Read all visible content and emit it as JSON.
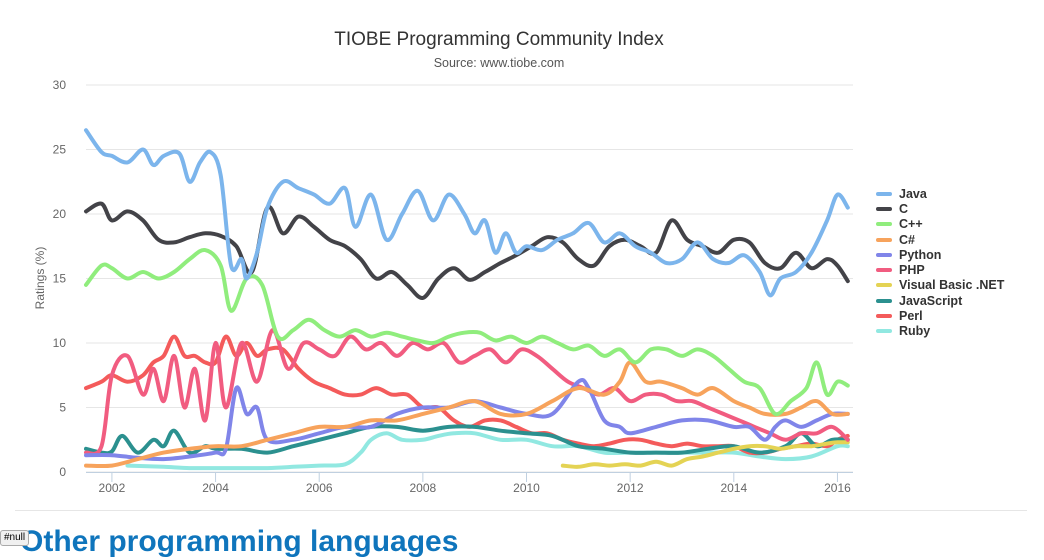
{
  "chart_data": {
    "type": "line",
    "title": "TIOBE Programming Community Index",
    "subtitle": "Source: www.tiobe.com",
    "xlabel": "",
    "ylabel": "Ratings (%)",
    "xlim": [
      2001.5,
      2016.3
    ],
    "ylim": [
      0,
      30
    ],
    "yticks": [
      0,
      5,
      10,
      15,
      20,
      25,
      30
    ],
    "xticks": [
      2002,
      2004,
      2006,
      2008,
      2010,
      2012,
      2014,
      2016
    ],
    "grid": "horizontal",
    "legend_position": "right",
    "series": [
      {
        "name": "Java",
        "color": "#7cb5ec",
        "x": [
          2001.5,
          2001.8,
          2002.0,
          2002.3,
          2002.6,
          2002.8,
          2003.0,
          2003.3,
          2003.5,
          2003.7,
          2003.9,
          2004.1,
          2004.3,
          2004.5,
          2004.6,
          2004.8,
          2005.0,
          2005.3,
          2005.6,
          2005.9,
          2006.2,
          2006.5,
          2006.7,
          2007.0,
          2007.3,
          2007.6,
          2007.9,
          2008.2,
          2008.5,
          2008.8,
          2009.0,
          2009.2,
          2009.4,
          2009.6,
          2009.8,
          2010.0,
          2010.3,
          2010.6,
          2010.9,
          2011.2,
          2011.5,
          2011.8,
          2012.1,
          2012.4,
          2012.7,
          2013.0,
          2013.3,
          2013.6,
          2013.9,
          2014.2,
          2014.5,
          2014.7,
          2014.9,
          2015.2,
          2015.5,
          2015.8,
          2016.0,
          2016.2
        ],
        "values": [
          26.5,
          24.8,
          24.5,
          24.0,
          25.0,
          23.8,
          24.5,
          24.7,
          22.5,
          24.0,
          24.8,
          23.0,
          16.0,
          16.5,
          15.0,
          17.0,
          20.5,
          22.5,
          22.0,
          21.5,
          20.8,
          22.0,
          19.0,
          21.5,
          18.0,
          20.0,
          21.8,
          19.5,
          21.5,
          20.0,
          18.5,
          19.5,
          17.0,
          18.5,
          17.0,
          17.5,
          17.2,
          18.0,
          18.5,
          19.3,
          17.8,
          18.5,
          17.5,
          17.0,
          16.2,
          16.5,
          17.8,
          16.5,
          16.2,
          16.8,
          15.5,
          13.7,
          15.0,
          15.5,
          17.0,
          19.5,
          21.5,
          20.5
        ]
      },
      {
        "name": "C",
        "color": "#434348",
        "x": [
          2001.5,
          2001.8,
          2002.0,
          2002.3,
          2002.6,
          2002.9,
          2003.2,
          2003.5,
          2003.8,
          2004.1,
          2004.4,
          2004.7,
          2005.0,
          2005.3,
          2005.6,
          2005.9,
          2006.2,
          2006.5,
          2006.8,
          2007.1,
          2007.4,
          2007.7,
          2008.0,
          2008.3,
          2008.6,
          2008.9,
          2009.2,
          2009.5,
          2009.8,
          2010.1,
          2010.4,
          2010.7,
          2011.0,
          2011.3,
          2011.6,
          2011.9,
          2012.2,
          2012.5,
          2012.8,
          2013.1,
          2013.4,
          2013.7,
          2014.0,
          2014.3,
          2014.6,
          2014.9,
          2015.2,
          2015.5,
          2015.8,
          2016.0,
          2016.2
        ],
        "values": [
          20.2,
          20.8,
          19.5,
          20.2,
          19.5,
          18.0,
          17.8,
          18.2,
          18.5,
          18.3,
          17.5,
          15.5,
          20.5,
          18.5,
          19.8,
          19.0,
          18.0,
          17.5,
          16.5,
          15.0,
          15.5,
          14.5,
          13.5,
          15.0,
          15.8,
          14.9,
          15.5,
          16.2,
          16.8,
          17.5,
          18.2,
          17.8,
          16.5,
          16.0,
          17.5,
          18.0,
          17.5,
          17.0,
          19.5,
          18.0,
          17.5,
          17.0,
          18.0,
          17.8,
          16.2,
          15.8,
          17.0,
          15.8,
          16.5,
          16.0,
          14.8
        ]
      },
      {
        "name": "C++",
        "color": "#90ed7d",
        "x": [
          2001.5,
          2001.8,
          2002.0,
          2002.3,
          2002.6,
          2002.9,
          2003.2,
          2003.5,
          2003.8,
          2004.1,
          2004.3,
          2004.6,
          2004.9,
          2005.2,
          2005.5,
          2005.8,
          2006.1,
          2006.4,
          2006.7,
          2007.0,
          2007.3,
          2007.6,
          2007.9,
          2008.2,
          2008.5,
          2008.8,
          2009.1,
          2009.4,
          2009.7,
          2010.0,
          2010.3,
          2010.6,
          2010.9,
          2011.2,
          2011.5,
          2011.8,
          2012.1,
          2012.4,
          2012.7,
          2013.0,
          2013.3,
          2013.6,
          2013.9,
          2014.2,
          2014.5,
          2014.8,
          2015.1,
          2015.4,
          2015.6,
          2015.8,
          2016.0,
          2016.2
        ],
        "values": [
          14.5,
          16.0,
          15.8,
          15.0,
          15.5,
          15.0,
          15.5,
          16.5,
          17.2,
          16.0,
          12.5,
          15.0,
          14.5,
          10.5,
          11.0,
          11.8,
          11.0,
          10.5,
          11.0,
          10.5,
          10.8,
          10.5,
          10.2,
          10.0,
          10.5,
          10.8,
          10.8,
          10.2,
          10.5,
          10.0,
          10.5,
          10.0,
          9.5,
          9.8,
          9.0,
          9.5,
          8.5,
          9.5,
          9.5,
          9.0,
          9.5,
          9.0,
          8.0,
          7.0,
          6.5,
          4.5,
          5.5,
          6.5,
          8.5,
          6.0,
          7.0,
          6.7
        ]
      },
      {
        "name": "C#",
        "color": "#f7a35c",
        "x": [
          2001.5,
          2002.0,
          2002.5,
          2003.0,
          2003.5,
          2004.0,
          2004.5,
          2005.0,
          2005.5,
          2006.0,
          2006.5,
          2007.0,
          2007.5,
          2008.0,
          2008.5,
          2009.0,
          2009.5,
          2010.0,
          2010.5,
          2011.0,
          2011.5,
          2011.8,
          2012.0,
          2012.3,
          2012.6,
          2013.0,
          2013.3,
          2013.6,
          2014.0,
          2014.3,
          2014.6,
          2015.0,
          2015.3,
          2015.6,
          2015.9,
          2016.2
        ],
        "values": [
          0.5,
          0.5,
          1.0,
          1.5,
          1.8,
          2.0,
          2.0,
          2.5,
          3.0,
          3.5,
          3.5,
          4.0,
          4.0,
          4.5,
          5.0,
          5.5,
          4.5,
          4.5,
          5.5,
          6.5,
          6.0,
          7.0,
          8.5,
          7.0,
          7.0,
          6.5,
          6.0,
          6.5,
          5.5,
          5.0,
          4.5,
          4.5,
          5.0,
          5.5,
          4.5,
          4.5
        ]
      },
      {
        "name": "Python",
        "color": "#8085e9",
        "x": [
          2001.5,
          2002.0,
          2002.5,
          2003.0,
          2003.5,
          2004.0,
          2004.2,
          2004.4,
          2004.6,
          2004.8,
          2005.0,
          2005.5,
          2006.0,
          2006.5,
          2007.0,
          2007.5,
          2008.0,
          2008.5,
          2009.0,
          2009.5,
          2010.0,
          2010.5,
          2011.0,
          2011.2,
          2011.5,
          2011.8,
          2012.0,
          2012.5,
          2013.0,
          2013.5,
          2014.0,
          2014.3,
          2014.6,
          2014.8,
          2015.0,
          2015.3,
          2015.6,
          2015.9,
          2016.2
        ],
        "values": [
          1.3,
          1.3,
          1.1,
          1.0,
          1.2,
          1.5,
          1.8,
          6.5,
          4.5,
          5.0,
          2.5,
          2.5,
          3.0,
          3.5,
          3.5,
          4.5,
          5.0,
          5.0,
          5.5,
          5.0,
          4.5,
          4.5,
          7.0,
          6.5,
          4.0,
          3.5,
          3.0,
          3.5,
          4.0,
          4.0,
          3.5,
          3.5,
          2.5,
          3.5,
          4.0,
          3.5,
          4.0,
          4.5,
          4.5
        ]
      },
      {
        "name": "PHP",
        "color": "#f15c80",
        "x": [
          2001.5,
          2001.8,
          2002.0,
          2002.3,
          2002.6,
          2002.8,
          2003.0,
          2003.2,
          2003.4,
          2003.6,
          2003.8,
          2004.0,
          2004.2,
          2004.5,
          2004.8,
          2005.1,
          2005.4,
          2005.7,
          2006.0,
          2006.3,
          2006.6,
          2006.9,
          2007.2,
          2007.5,
          2007.8,
          2008.1,
          2008.4,
          2008.7,
          2009.0,
          2009.3,
          2009.6,
          2009.9,
          2010.2,
          2010.5,
          2010.8,
          2011.1,
          2011.4,
          2011.7,
          2012.0,
          2012.3,
          2012.6,
          2012.9,
          2013.2,
          2013.5,
          2013.8,
          2014.1,
          2014.4,
          2014.7,
          2015.0,
          2015.3,
          2015.6,
          2015.9,
          2016.2
        ],
        "values": [
          1.5,
          2.0,
          7.5,
          9.0,
          6.0,
          8.0,
          5.5,
          9.0,
          5.0,
          8.0,
          4.0,
          10.0,
          5.0,
          10.0,
          7.0,
          11.0,
          8.0,
          10.0,
          9.5,
          9.0,
          10.5,
          9.5,
          10.0,
          9.0,
          10.0,
          9.5,
          10.0,
          8.5,
          9.0,
          9.5,
          8.5,
          9.5,
          9.0,
          8.0,
          7.0,
          6.5,
          6.0,
          6.5,
          5.5,
          6.0,
          6.0,
          5.5,
          5.5,
          5.0,
          4.5,
          4.0,
          3.5,
          3.0,
          2.5,
          3.0,
          3.0,
          3.5,
          2.5
        ]
      },
      {
        "name": "Visual Basic .NET",
        "color": "#e4d354",
        "x": [
          2010.7,
          2011.0,
          2011.3,
          2011.6,
          2011.9,
          2012.2,
          2012.5,
          2012.8,
          2013.1,
          2013.4,
          2013.7,
          2014.0,
          2014.3,
          2014.6,
          2014.9,
          2015.2,
          2015.5,
          2015.8,
          2016.0,
          2016.2
        ],
        "values": [
          0.5,
          0.4,
          0.6,
          0.5,
          0.6,
          0.5,
          0.8,
          0.5,
          1.0,
          1.2,
          1.5,
          1.8,
          2.0,
          2.0,
          1.8,
          2.0,
          2.0,
          2.2,
          2.3,
          2.3
        ]
      },
      {
        "name": "JavaScript",
        "color": "#2b908f",
        "x": [
          2001.5,
          2001.8,
          2002.0,
          2002.2,
          2002.5,
          2002.8,
          2003.0,
          2003.2,
          2003.5,
          2003.8,
          2004.0,
          2004.5,
          2005.0,
          2005.5,
          2006.0,
          2006.5,
          2007.0,
          2007.5,
          2008.0,
          2008.5,
          2009.0,
          2009.5,
          2010.0,
          2010.5,
          2011.0,
          2011.5,
          2012.0,
          2012.5,
          2013.0,
          2013.5,
          2014.0,
          2014.5,
          2015.0,
          2015.3,
          2015.6,
          2015.9,
          2016.2
        ],
        "values": [
          1.8,
          1.5,
          1.6,
          2.8,
          1.5,
          2.5,
          2.0,
          3.2,
          1.5,
          2.0,
          1.8,
          1.8,
          1.5,
          2.0,
          2.5,
          3.0,
          3.5,
          3.5,
          3.2,
          3.5,
          3.5,
          3.2,
          3.0,
          2.8,
          2.0,
          1.8,
          1.5,
          1.5,
          1.5,
          1.8,
          2.0,
          1.5,
          2.0,
          3.0,
          2.0,
          2.5,
          2.5
        ]
      },
      {
        "name": "Perl",
        "color": "#f45b5b",
        "x": [
          2001.5,
          2001.8,
          2002.0,
          2002.3,
          2002.6,
          2002.8,
          2003.0,
          2003.2,
          2003.4,
          2003.6,
          2003.8,
          2004.0,
          2004.2,
          2004.4,
          2004.6,
          2004.8,
          2005.0,
          2005.3,
          2005.6,
          2005.9,
          2006.2,
          2006.5,
          2006.8,
          2007.1,
          2007.4,
          2007.7,
          2008.0,
          2008.3,
          2008.6,
          2008.9,
          2009.2,
          2009.5,
          2009.8,
          2010.1,
          2010.4,
          2010.7,
          2011.0,
          2011.3,
          2011.6,
          2011.9,
          2012.2,
          2012.5,
          2012.8,
          2013.1,
          2013.4,
          2013.7,
          2014.0,
          2014.3,
          2014.6,
          2014.9,
          2015.2,
          2015.5,
          2015.8,
          2016.0,
          2016.2
        ],
        "values": [
          6.5,
          7.0,
          7.5,
          7.0,
          7.5,
          8.5,
          9.0,
          10.5,
          9.0,
          9.0,
          8.5,
          8.5,
          10.5,
          9.0,
          10.0,
          9.0,
          9.5,
          9.5,
          8.0,
          7.0,
          6.5,
          6.0,
          6.0,
          6.5,
          6.0,
          6.0,
          5.0,
          5.0,
          4.0,
          3.5,
          4.0,
          4.0,
          3.5,
          3.0,
          3.0,
          2.5,
          2.2,
          2.0,
          2.2,
          2.5,
          2.5,
          2.2,
          2.0,
          2.2,
          2.0,
          2.0,
          2.0,
          1.5,
          1.5,
          1.8,
          2.0,
          2.2,
          2.0,
          2.5,
          2.8
        ]
      },
      {
        "name": "Ruby",
        "color": "#91e8e1",
        "x": [
          2002.3,
          2003.0,
          2003.5,
          2004.0,
          2004.5,
          2005.0,
          2005.5,
          2006.0,
          2006.5,
          2006.8,
          2007.0,
          2007.3,
          2007.6,
          2008.0,
          2008.3,
          2008.6,
          2009.0,
          2009.5,
          2010.0,
          2010.5,
          2011.0,
          2011.5,
          2012.0,
          2012.5,
          2013.0,
          2013.5,
          2014.0,
          2014.5,
          2015.0,
          2015.5,
          2016.0,
          2016.2
        ],
        "values": [
          0.5,
          0.4,
          0.3,
          0.3,
          0.3,
          0.3,
          0.4,
          0.5,
          0.6,
          1.5,
          2.5,
          3.0,
          2.5,
          2.5,
          2.8,
          3.0,
          3.0,
          2.5,
          2.5,
          2.0,
          2.0,
          1.5,
          1.5,
          1.5,
          1.5,
          1.5,
          1.5,
          1.2,
          1.0,
          1.2,
          2.0,
          2.0
        ]
      }
    ]
  },
  "next_section": {
    "heading": "Other programming languages"
  },
  "null_tag": "#null"
}
